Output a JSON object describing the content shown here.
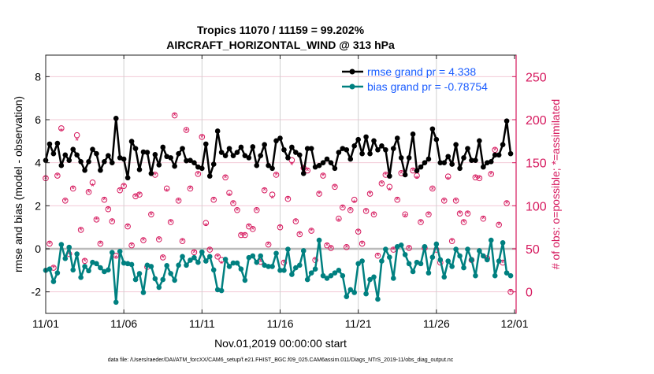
{
  "chart_data": {
    "type": "line",
    "title": [
      "Tropics 11070 / 11159 = 99.202%",
      "AIRCRAFT_HORIZONTAL_WIND @ 313 hPa"
    ],
    "xlabel": "Nov.01,2019 00:00:00 start",
    "ylabel": "rmse and bias (model - observation)",
    "ylabel_right": "# of obs: o=possible; *=assimilated",
    "footer": "data file: /Users/raeder/DAI/ATM_forcXX/CAM6_setup/f.e21.FHIST_BGC.f09_025.CAM6assim.011/Diags_NTrS_2019-11/obs_diag_output.nc",
    "x_start": "2019-11-01 00:00",
    "x_step_hours": 6,
    "x_ticks": [
      "11/01",
      "11/06",
      "11/11",
      "11/16",
      "11/21",
      "11/26",
      "12/01"
    ],
    "xlim_days": [
      0,
      30
    ],
    "ylim": [
      -3,
      9
    ],
    "y_ticks": [
      -2,
      0,
      2,
      4,
      6,
      8
    ],
    "ylim_right": [
      -25,
      275
    ],
    "y_ticks_right": [
      0,
      50,
      100,
      150,
      200,
      250
    ],
    "grid": true,
    "legend_placement": "top-right",
    "colors": {
      "rmse": "#000000",
      "bias": "#008080",
      "obs": "#d6195e",
      "legend_text": "#1a5cff",
      "grid_h": "#f2c9d6",
      "grid_v": "#d0d0d0",
      "zero_line": "#bbbbbb"
    },
    "series": [
      {
        "name": "rmse grand pr = 4.338",
        "values": [
          4.11,
          4.87,
          4.42,
          4.9,
          3.87,
          4.36,
          4.11,
          4.62,
          4.36,
          4.05,
          3.65,
          4.05,
          4.62,
          4.42,
          3.65,
          4.05,
          4.33,
          4.0,
          6.06,
          4.23,
          4.17,
          3.3,
          4.99,
          4.66,
          3.68,
          4.5,
          4.48,
          3.5,
          4.38,
          3.9,
          4.72,
          4.29,
          4.23,
          3.84,
          4.42,
          4.66,
          4.09,
          4.11,
          4.0,
          3.8,
          3.74,
          4.87,
          3.38,
          3.93,
          5.47,
          4.48,
          4.33,
          4.66,
          4.33,
          4.48,
          4.72,
          4.33,
          4.23,
          4.74,
          3.87,
          4.33,
          4.84,
          3.87,
          3.74,
          5.02,
          5.14,
          4.6,
          4.23,
          4.72,
          4.48,
          4.36,
          3.5,
          4.66,
          4.66,
          3.8,
          3.87,
          4.0,
          4.17,
          4.0,
          3.74,
          4.48,
          4.66,
          4.6,
          4.17,
          4.78,
          5.08,
          4.42,
          5.2,
          4.42,
          5.02,
          4.6,
          4.78,
          4.6,
          3.38,
          4.66,
          5.14,
          4.23,
          3.44,
          4.23,
          5.33,
          3.63,
          3.8,
          4.0,
          4.17,
          5.57,
          5.08,
          4.0,
          4.0,
          4.29,
          3.93,
          4.84,
          3.74,
          4.23,
          4.66,
          4.11,
          4.11,
          5.02,
          3.8,
          4.0,
          4.05,
          4.36,
          4.36,
          4.84,
          5.94,
          4.42
        ]
      },
      {
        "name": "bias grand pr = -0.78754",
        "values": [
          -1.0,
          -0.94,
          -1.52,
          -1.12,
          0.2,
          -0.45,
          0.07,
          -0.98,
          -0.24,
          -1.33,
          -0.82,
          -1.02,
          -0.63,
          -0.69,
          -0.88,
          -1.06,
          -0.98,
          -0.17,
          -2.48,
          -0.12,
          -0.66,
          -0.69,
          -0.73,
          -1.43,
          -1.15,
          -2.03,
          -0.76,
          -0.82,
          -1.39,
          -1.79,
          -1.43,
          -0.78,
          -1.15,
          -1.46,
          -0.76,
          -0.36,
          -0.76,
          -0.53,
          -0.41,
          -0.63,
          -0.15,
          -0.57,
          -0.36,
          -0.98,
          -1.9,
          -1.94,
          -0.49,
          -0.82,
          -0.66,
          -0.66,
          -0.94,
          -1.46,
          -0.41,
          -0.33,
          -0.63,
          -0.33,
          -0.76,
          -0.82,
          -0.82,
          -0.21,
          -1.0,
          -1.0,
          -0.02,
          -1.19,
          -0.88,
          -0.76,
          -0.09,
          -1.43,
          -1.12,
          -0.94,
          0.4,
          -1.25,
          -1.37,
          -1.25,
          -1.12,
          -1.0,
          -1.25,
          -2.22,
          -1.9,
          -2.03,
          -0.69,
          -0.57,
          -2.09,
          -1.43,
          -1.31,
          -2.34,
          -0.57,
          -0.02,
          -0.39,
          -1.37,
          0.1,
          0.17,
          -0.27,
          -0.69,
          -1.06,
          -0.63,
          -0.69,
          0.1,
          -1.12,
          -0.39,
          0.22,
          -0.51,
          -1.31,
          -0.57,
          -0.82,
          -0.02,
          -0.33,
          -0.88,
          -0.02,
          -0.51,
          -1.25,
          -0.09,
          -0.33,
          -0.51,
          0.4,
          -1.25,
          -0.57,
          0.28,
          -1.12,
          -1.25
        ]
      },
      {
        "name": "possible",
        "axis": "right",
        "values": [
          132,
          56,
          28,
          135,
          190,
          106,
          44,
          120,
          182,
          72,
          36,
          116,
          127,
          84,
          56,
          107,
          96,
          82,
          42,
          118,
          123,
          76,
          54,
          111,
          113,
          60,
          29,
          90,
          136,
          61,
          40,
          120,
          81,
          205,
          106,
          59,
          188,
          120,
          46,
          137,
          180,
          80,
          49,
          107,
          41,
          37,
          133,
          115,
          103,
          95,
          66,
          66,
          76,
          73,
          95,
          35,
          118,
          55,
          113,
          136,
          75,
          34,
          108,
          153,
          82,
          67,
          144,
          141,
          71,
          37,
          114,
          135,
          54,
          51,
          122,
          85,
          98,
          52,
          95,
          107,
          70,
          56,
          94,
          114,
          90,
          42,
          126,
          136,
          122,
          49,
          107,
          138,
          90,
          51,
          141,
          135,
          81,
          51,
          90,
          120,
          49,
          34,
          106,
          134,
          59,
          106,
          91,
          81,
          91,
          37,
          133,
          132,
          85,
          39,
          137,
          165,
          78,
          34,
          103,
          0
        ]
      },
      {
        "name": "assimilated",
        "axis": "right",
        "values": [
          132,
          56,
          28,
          135,
          187,
          106,
          44,
          120,
          176,
          72,
          36,
          116,
          123,
          84,
          56,
          107,
          96,
          82,
          40,
          118,
          123,
          76,
          54,
          111,
          113,
          60,
          29,
          90,
          136,
          61,
          40,
          117,
          81,
          205,
          106,
          59,
          187,
          120,
          46,
          137,
          180,
          77,
          49,
          107,
          41,
          33,
          133,
          112,
          103,
          95,
          66,
          66,
          76,
          73,
          95,
          35,
          118,
          55,
          109,
          136,
          75,
          34,
          108,
          148,
          82,
          67,
          144,
          141,
          71,
          37,
          114,
          135,
          54,
          51,
          122,
          83,
          98,
          52,
          95,
          104,
          70,
          56,
          94,
          114,
          90,
          42,
          126,
          136,
          118,
          49,
          107,
          138,
          88,
          51,
          141,
          132,
          81,
          51,
          90,
          119,
          49,
          34,
          106,
          131,
          59,
          106,
          91,
          81,
          91,
          37,
          133,
          132,
          85,
          39,
          137,
          165,
          78,
          34,
          103,
          0
        ]
      }
    ]
  }
}
